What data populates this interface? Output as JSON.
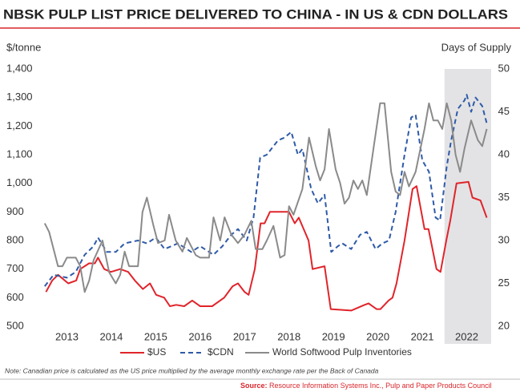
{
  "chart_data": {
    "type": "line",
    "title": "NBSK PULP LIST PRICE DELIVERED TO CHINA - IN US & CDN DOLLARS",
    "y_label": "$/tonne",
    "y2_label": "Days of Supply",
    "note": "Note: Canadian price is calculated as the US price multiplied by the average monthly exchange rate per the Back of Canada",
    "source_label": "Source:",
    "source": "Resource Information Systems Inc., Pulp and Paper Products Council",
    "xlim": [
      2012.95,
      2023.05
    ],
    "xticks": [
      {
        "value": 2013.5,
        "label": "2013"
      },
      {
        "value": 2014.5,
        "label": "2014"
      },
      {
        "value": 2015.5,
        "label": "2015"
      },
      {
        "value": 2016.5,
        "label": "2016"
      },
      {
        "value": 2017.5,
        "label": "2017"
      },
      {
        "value": 2018.5,
        "label": "2018"
      },
      {
        "value": 2019.5,
        "label": "2019"
      },
      {
        "value": 2020.5,
        "label": "2020"
      },
      {
        "value": 2021.5,
        "label": "2021"
      },
      {
        "value": 2022.5,
        "label": "2022"
      }
    ],
    "ylim": [
      500,
      1400
    ],
    "yticks": [
      500,
      600,
      700,
      800,
      900,
      {
        "value": 1000,
        "label": "1,000"
      },
      {
        "value": 1100,
        "label": "1,100"
      },
      {
        "value": 1200,
        "label": "1,200"
      },
      {
        "value": 1300,
        "label": "1,300"
      },
      {
        "value": 1400,
        "label": "1,400"
      }
    ],
    "y2lim": [
      20,
      50
    ],
    "y2ticks": [
      20,
      25,
      30,
      35,
      40,
      45,
      50
    ],
    "highlight_range": [
      2022,
      2023.05
    ],
    "highlight_color": "#e3e3e5",
    "series": [
      {
        "name": "$US",
        "color": "#e0242b",
        "dashed": false,
        "x": [
          2013.03,
          2013.17,
          2013.3,
          2013.53,
          2013.71,
          2013.8,
          2014.0,
          2014.13,
          2014.2,
          2014.34,
          2014.49,
          2014.7,
          2014.88,
          2015.03,
          2015.21,
          2015.37,
          2015.51,
          2015.69,
          2015.82,
          2015.96,
          2016.14,
          2016.32,
          2016.5,
          2016.77,
          2017.04,
          2017.23,
          2017.35,
          2017.5,
          2017.59,
          2017.73,
          2017.86,
          2017.95,
          2018.07,
          2018.5,
          2018.63,
          2018.72,
          2018.94,
          2019.03,
          2019.3,
          2019.44,
          2019.9,
          2020.2,
          2020.29,
          2020.47,
          2020.56,
          2020.74,
          2020.83,
          2020.92,
          2021.1,
          2021.28,
          2021.37,
          2021.55,
          2021.64,
          2021.82,
          2021.91,
          2022.04,
          2022.13,
          2022.27,
          2022.54,
          2022.63,
          2022.81,
          2022.95
        ],
        "values": [
          620,
          660,
          680,
          650,
          660,
          700,
          720,
          720,
          740,
          700,
          690,
          700,
          690,
          660,
          630,
          650,
          610,
          600,
          570,
          575,
          570,
          590,
          570,
          570,
          600,
          640,
          650,
          620,
          610,
          700,
          860,
          860,
          900,
          900,
          860,
          880,
          800,
          700,
          710,
          560,
          555,
          575,
          580,
          560,
          560,
          590,
          600,
          650,
          800,
          980,
          990,
          840,
          840,
          700,
          690,
          800,
          870,
          1000,
          1005,
          950,
          940,
          880
        ]
      },
      {
        "name": "$CDN",
        "color": "#2e5aa8",
        "dashed": true,
        "x": [
          2013.0,
          2013.2,
          2013.5,
          2013.7,
          2013.9,
          2014.1,
          2014.2,
          2014.4,
          2014.6,
          2014.8,
          2015.1,
          2015.3,
          2015.5,
          2015.7,
          2016.0,
          2016.3,
          2016.5,
          2016.8,
          2017.0,
          2017.2,
          2017.35,
          2017.55,
          2017.7,
          2017.85,
          2018.0,
          2018.25,
          2018.4,
          2018.55,
          2018.7,
          2018.8,
          2019.0,
          2019.15,
          2019.3,
          2019.45,
          2019.6,
          2019.7,
          2019.9,
          2020.1,
          2020.25,
          2020.45,
          2020.6,
          2020.75,
          2020.9,
          2021.1,
          2021.25,
          2021.35,
          2021.5,
          2021.65,
          2021.8,
          2021.9,
          2022.05,
          2022.15,
          2022.3,
          2022.45,
          2022.5,
          2022.6,
          2022.7,
          2022.85,
          2022.95
        ],
        "values": [
          640,
          680,
          670,
          690,
          750,
          780,
          810,
          760,
          760,
          790,
          800,
          790,
          810,
          770,
          790,
          760,
          780,
          750,
          780,
          820,
          840,
          800,
          880,
          1090,
          1100,
          1150,
          1160,
          1180,
          1100,
          1120,
          980,
          930,
          960,
          760,
          780,
          790,
          770,
          820,
          830,
          770,
          790,
          800,
          900,
          1100,
          1230,
          1240,
          1080,
          1040,
          880,
          870,
          1060,
          1150,
          1260,
          1290,
          1310,
          1250,
          1300,
          1270,
          1210
        ]
      },
      {
        "name": "World Softwood Pulp Inventories",
        "color": "#8a8a8a",
        "dashed": false,
        "axis": "y2",
        "x": [
          2013.0,
          2013.1,
          2013.3,
          2013.4,
          2013.5,
          2013.7,
          2013.8,
          2013.9,
          2014.0,
          2014.1,
          2014.3,
          2014.45,
          2014.6,
          2014.7,
          2014.8,
          2014.9,
          2015.1,
          2015.2,
          2015.3,
          2015.45,
          2015.55,
          2015.7,
          2015.8,
          2015.95,
          2016.1,
          2016.2,
          2016.4,
          2016.5,
          2016.7,
          2016.8,
          2016.95,
          2017.05,
          2017.2,
          2017.35,
          2017.5,
          2017.65,
          2017.75,
          2017.9,
          2018.0,
          2018.15,
          2018.3,
          2018.4,
          2018.5,
          2018.6,
          2018.8,
          2018.95,
          2019.1,
          2019.2,
          2019.3,
          2019.4,
          2019.55,
          2019.65,
          2019.75,
          2019.85,
          2019.95,
          2020.05,
          2020.15,
          2020.25,
          2020.4,
          2020.55,
          2020.65,
          2020.8,
          2020.9,
          2021.0,
          2021.1,
          2021.2,
          2021.35,
          2021.55,
          2021.65,
          2021.75,
          2021.85,
          2021.95,
          2022.05,
          2022.15,
          2022.25,
          2022.35,
          2022.45,
          2022.6,
          2022.75,
          2022.85,
          2022.95
        ],
        "values": [
          32,
          31,
          27,
          27,
          28,
          28,
          27,
          24,
          25.3,
          27.7,
          30,
          26.3,
          25,
          26,
          28.7,
          27,
          27,
          33.3,
          35,
          31.7,
          29.7,
          30,
          33,
          30,
          28.7,
          30.3,
          28.3,
          28,
          28,
          32.7,
          30,
          32.7,
          30.7,
          29.7,
          30.7,
          32.3,
          29,
          29,
          30,
          31.7,
          28,
          28.3,
          34,
          33,
          36,
          42,
          38.7,
          37,
          38.3,
          43,
          38.3,
          36.7,
          34.3,
          35,
          37,
          36,
          37,
          35.3,
          40.7,
          46,
          46,
          38,
          35.7,
          35.3,
          38,
          36.3,
          38,
          43,
          46,
          44,
          44,
          43,
          46,
          44,
          40,
          38,
          40.7,
          44,
          41.7,
          41,
          43
        ]
      }
    ]
  }
}
